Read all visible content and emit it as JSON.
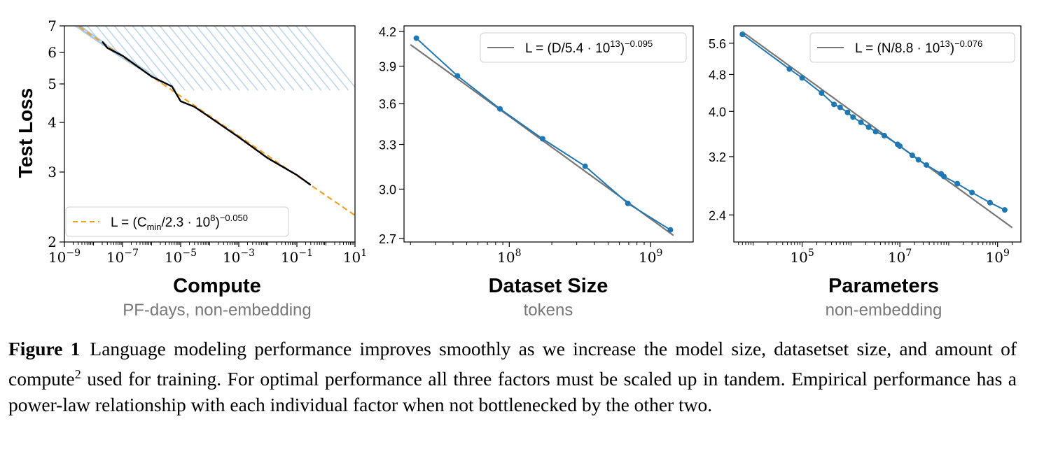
{
  "chart_data": [
    {
      "type": "line",
      "ylabel": "Test Loss",
      "xlabel": "Compute",
      "xsublabel": "PF-days, non-embedding",
      "xscale": "log",
      "yscale": "log",
      "xlim": [
        1e-09,
        10
      ],
      "ylim": [
        2,
        7
      ],
      "x_ticks": [
        {
          "v": 1e-09,
          "m": "10",
          "e": "−9"
        },
        {
          "v": 1e-07,
          "m": "10",
          "e": "−7"
        },
        {
          "v": 1e-05,
          "m": "10",
          "e": "−5"
        },
        {
          "v": 0.001,
          "m": "10",
          "e": "−3"
        },
        {
          "v": 0.1,
          "m": "10",
          "e": "−1"
        },
        {
          "v": 10,
          "m": "10",
          "e": "1"
        }
      ],
      "y_ticks": [
        {
          "v": 2,
          "t": "2"
        },
        {
          "v": 3,
          "t": "3"
        },
        {
          "v": 4,
          "t": "4"
        },
        {
          "v": 5,
          "t": "5"
        },
        {
          "v": 6,
          "t": "6"
        },
        {
          "v": 7,
          "t": "7"
        }
      ],
      "legend": {
        "position": "lower-left",
        "style": "dashed",
        "color": "#f0a22a",
        "eq_a": "L = (C",
        "eq_sub": "min",
        "eq_b": "/2.3 · 10",
        "eq_sup1": "8",
        "eq_c": ")",
        "eq_sup2": "−0.050"
      },
      "fit": {
        "name": "L = (Cmin/2.3·10^8)^−0.050",
        "color": "#f0a22a",
        "C0": 230000000.0,
        "alpha": 0.05,
        "x_range": [
          1e-09,
          10
        ]
      },
      "frontier": {
        "color": "#000000",
        "x": [
          2e-08,
          3e-08,
          1e-07,
          1e-06,
          5e-06,
          1e-05,
          3e-05,
          0.0001,
          0.001,
          0.01,
          0.1,
          0.3
        ],
        "y": [
          6.35,
          6.2,
          5.85,
          5.25,
          4.9,
          4.55,
          4.35,
          4.15,
          3.65,
          3.27,
          2.93,
          2.8
        ]
      },
      "learning_curves": {
        "color": "#8ab6d8",
        "count": 32
      }
    },
    {
      "type": "line",
      "xlabel": "Dataset Size",
      "xsublabel": "tokens",
      "xscale": "log",
      "yscale": "log",
      "xlim": [
        18000000.0,
        2000000000.0
      ],
      "ylim": [
        2.68,
        4.25
      ],
      "x_ticks": [
        {
          "v": 100000000.0,
          "m": "10",
          "e": "8"
        },
        {
          "v": 1000000000.0,
          "m": "10",
          "e": "9"
        }
      ],
      "y_ticks": [
        {
          "v": 2.7,
          "t": "2.7"
        },
        {
          "v": 3.0,
          "t": "3.0"
        },
        {
          "v": 3.3,
          "t": "3.3"
        },
        {
          "v": 3.6,
          "t": "3.6"
        },
        {
          "v": 3.9,
          "t": "3.9"
        },
        {
          "v": 4.2,
          "t": "4.2"
        }
      ],
      "legend": {
        "position": "upper-right",
        "style": "solid",
        "color": "#777777",
        "eq_a": "L = (D/5.4 · 10",
        "eq_sup1": "13",
        "eq_c": ")",
        "eq_sup2": "−0.095"
      },
      "fit": {
        "name": "L = (D/5.4·10^13)^−0.095",
        "color": "#777777",
        "C0": 54000000000000.0,
        "alpha": 0.095,
        "x_range": [
          20000000.0,
          1450000000.0
        ]
      },
      "series": [
        {
          "color": "#1f77b4",
          "x": [
            22000000.0,
            43000000.0,
            86000000.0,
            172000000.0,
            344000000.0,
            690000000.0,
            1380000000.0
          ],
          "y": [
            4.14,
            3.82,
            3.56,
            3.34,
            3.15,
            2.91,
            2.75
          ]
        }
      ]
    },
    {
      "type": "line",
      "xlabel": "Parameters",
      "xsublabel": "non-embedding",
      "xscale": "log",
      "yscale": "log",
      "xlim": [
        4000.0,
        3000000000.0
      ],
      "ylim": [
        2.1,
        6.1
      ],
      "x_ticks": [
        {
          "v": 100000.0,
          "m": "10",
          "e": "5"
        },
        {
          "v": 10000000.0,
          "m": "10",
          "e": "7"
        },
        {
          "v": 1000000000.0,
          "m": "10",
          "e": "9"
        }
      ],
      "y_ticks": [
        {
          "v": 2.4,
          "t": "2.4"
        },
        {
          "v": 3.2,
          "t": "3.2"
        },
        {
          "v": 4.0,
          "t": "4.0"
        },
        {
          "v": 4.8,
          "t": "4.8"
        },
        {
          "v": 5.6,
          "t": "5.6"
        }
      ],
      "legend": {
        "position": "upper-right",
        "style": "solid",
        "color": "#777777",
        "eq_a": "L = (N/8.8 · 10",
        "eq_sup1": "13",
        "eq_c": ")",
        "eq_sup2": "−0.076"
      },
      "fit": {
        "name": "L = (N/8.8·10^13)^−0.076",
        "color": "#777777",
        "C0": 88000000000000.0,
        "alpha": 0.076,
        "x_range": [
          6000.0,
          2000000000.0
        ]
      },
      "series": [
        {
          "color": "#1f77b4",
          "x": [
            6000.0,
            55000.0,
            100000.0,
            250000.0,
            450000.0,
            600000.0,
            850000.0,
            1100000.0,
            1600000.0,
            2300000.0,
            3200000.0,
            4800000.0,
            9000000.0,
            10000000.0,
            18000000.0,
            24000000.0,
            35000000.0,
            70000000.0,
            80000000.0,
            150000000.0,
            300000000.0,
            700000000.0,
            1400000000.0
          ],
          "y": [
            5.85,
            4.93,
            4.72,
            4.38,
            4.14,
            4.08,
            3.98,
            3.89,
            3.79,
            3.7,
            3.62,
            3.55,
            3.4,
            3.37,
            3.22,
            3.15,
            3.07,
            2.94,
            2.9,
            2.8,
            2.68,
            2.55,
            2.46
          ]
        }
      ]
    }
  ],
  "caption": {
    "label": "Figure 1",
    "text": "Language modeling performance improves smoothly as we increase the model size, datasetset size, and amount of compute",
    "sup": "2",
    "text2": " used for training. For optimal performance all three factors must be scaled up in tandem. Empirical performance has a power-law relationship with each individual factor when not bottlenecked by the other two."
  }
}
